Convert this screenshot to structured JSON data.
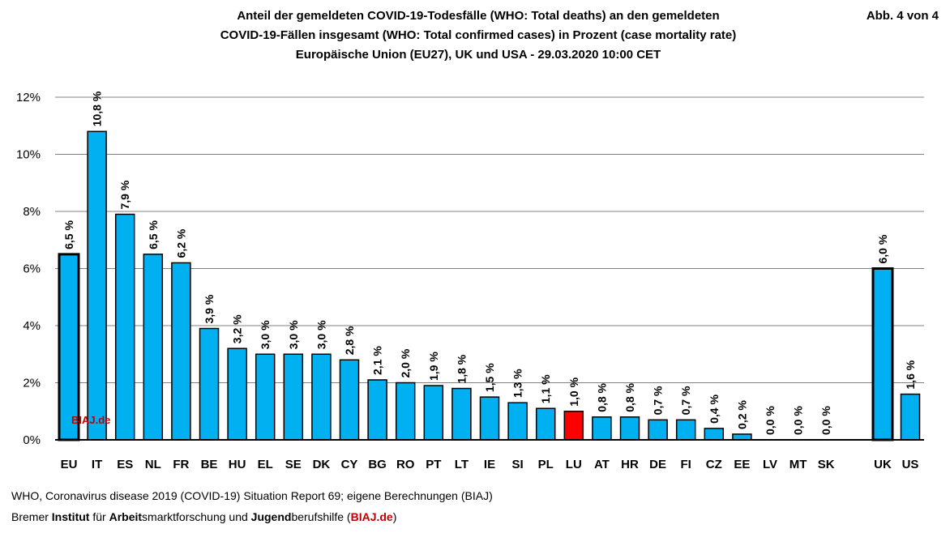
{
  "header": {
    "abb_label": "Abb. 4 von 4"
  },
  "chart_data": {
    "type": "bar",
    "title_lines": [
      "Anteil der gemeldeten COVID-19-Todesfälle (WHO: Total deaths) an den gemeldeten",
      "COVID-19-Fällen insgesamt (WHO: Total confirmed cases) in Prozent (case mortality rate)",
      "Europäische Union (EU27), UK und USA - 29.03.2020 10:00 CET"
    ],
    "categories": [
      "EU",
      "IT",
      "ES",
      "NL",
      "FR",
      "BE",
      "HU",
      "EL",
      "SE",
      "DK",
      "CY",
      "BG",
      "RO",
      "PT",
      "LT",
      "IE",
      "SI",
      "PL",
      "LU",
      "AT",
      "HR",
      "DE",
      "FI",
      "CZ",
      "EE",
      "LV",
      "MT",
      "SK",
      "UK",
      "US"
    ],
    "values": [
      6.5,
      10.8,
      7.9,
      6.5,
      6.2,
      3.9,
      3.2,
      3.0,
      3.0,
      3.0,
      2.8,
      2.1,
      2.0,
      1.9,
      1.8,
      1.5,
      1.3,
      1.1,
      1.0,
      0.8,
      0.8,
      0.7,
      0.7,
      0.4,
      0.2,
      0.0,
      0.0,
      0.0,
      6.0,
      1.6
    ],
    "data_labels": [
      "6,5 %",
      "10,8 %",
      "7,9 %",
      "6,5 %",
      "6,2 %",
      "3,9 %",
      "3,2 %",
      "3,0 %",
      "3,0 %",
      "3,0 %",
      "2,8 %",
      "2,1 %",
      "2,0 %",
      "1,9 %",
      "1,8 %",
      "1,5 %",
      "1,3 %",
      "1,1 %",
      "1,0 %",
      "0,8 %",
      "0,8 %",
      "0,7 %",
      "0,7 %",
      "0,4 %",
      "0,2 %",
      "0,0 %",
      "0,0 %",
      "0,0 %",
      "6,0 %",
      "1,6 %"
    ],
    "yticks": [
      0,
      2,
      4,
      6,
      8,
      10,
      12
    ],
    "ytick_labels": [
      "0%",
      "2%",
      "4%",
      "6%",
      "8%",
      "10%",
      "12%"
    ],
    "ylim": [
      0,
      12
    ],
    "xlabel": "",
    "ylabel": "",
    "grid": true,
    "colors": {
      "default": "#00b0f0",
      "highlight": "#ff0000",
      "edge": "#000000",
      "grid": "#808080"
    },
    "highlight_category": "LU",
    "wide_border_categories": [
      "EU",
      "UK"
    ],
    "watermark": "BIAJ.de"
  },
  "footer": {
    "source": "WHO, Coronavirus disease 2019 (COVID-19) Situation Report 69; eigene Berechnungen (BIAJ)",
    "org_part1": "Bremer ",
    "org_b1": "Institut",
    "org_part2": " für ",
    "org_b2": "Arbeit",
    "org_part3": "smarktforschung und ",
    "org_b3": "Jugend",
    "org_part4": "berufshilfe (",
    "org_link": "BIAJ.de",
    "org_part5": ")"
  }
}
